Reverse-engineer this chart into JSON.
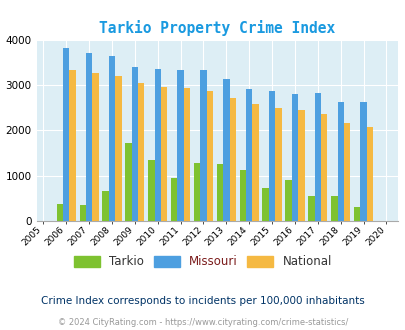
{
  "title": "Tarkio Property Crime Index",
  "subtitle": "Crime Index corresponds to incidents per 100,000 inhabitants",
  "footer": "© 2024 CityRating.com - https://www.cityrating.com/crime-statistics/",
  "years": [
    2005,
    2006,
    2007,
    2008,
    2009,
    2010,
    2011,
    2012,
    2013,
    2014,
    2015,
    2016,
    2017,
    2018,
    2019,
    2020
  ],
  "tarkio": [
    0,
    380,
    360,
    660,
    1720,
    1340,
    960,
    1290,
    1250,
    1130,
    740,
    910,
    550,
    550,
    300,
    0
  ],
  "missouri": [
    0,
    3820,
    3710,
    3640,
    3390,
    3360,
    3330,
    3330,
    3130,
    2920,
    2860,
    2810,
    2820,
    2630,
    2630,
    0
  ],
  "national": [
    0,
    3340,
    3270,
    3200,
    3040,
    2950,
    2930,
    2870,
    2710,
    2590,
    2490,
    2450,
    2360,
    2160,
    2080,
    0
  ],
  "bar_width": 0.28,
  "ylim": [
    0,
    4000
  ],
  "yticks": [
    0,
    1000,
    2000,
    3000,
    4000
  ],
  "tarkio_color": "#7ec230",
  "missouri_color": "#4d9fe0",
  "national_color": "#f5b942",
  "bg_color": "#ddeef5",
  "title_color": "#1a9ae0",
  "subtitle_color": "#003366",
  "footer_color": "#999999",
  "grid_color": "#ffffff",
  "legend_tarkio_color": "#333333",
  "legend_missouri_color": "#7b1c1c",
  "legend_national_color": "#333333"
}
